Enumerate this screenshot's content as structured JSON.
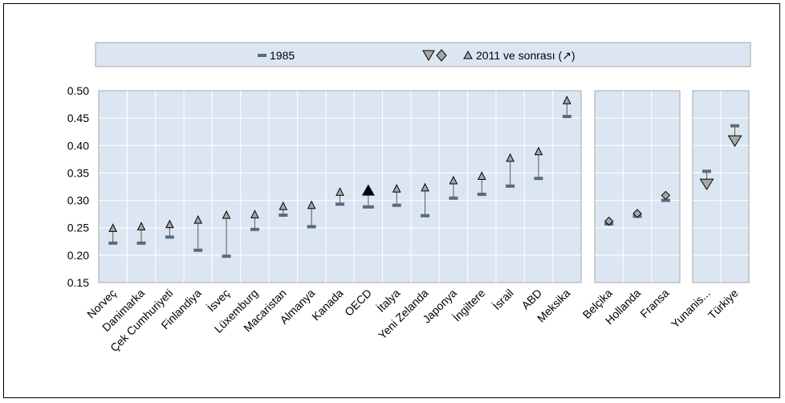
{
  "colors": {
    "panel_fill": "#dce6f2",
    "panel_border": "#a6a6a6",
    "grid": "#ffffff",
    "marker_1985": "#5a6a7e",
    "triangle_fill": "#a6a6a6",
    "stem": "#595959",
    "oecd_marker": "#000000"
  },
  "legend": {
    "label_1985": "1985",
    "label_2011": "2011 ve sonrası (↗)"
  },
  "chart_data": {
    "type": "dot-range",
    "title": "",
    "xlabel": "",
    "ylabel": "",
    "ylim": [
      0.15,
      0.5
    ],
    "yticks": [
      "0.50",
      "0.45",
      "0.40",
      "0.35",
      "0.30",
      "0.25",
      "0.20",
      "0.15"
    ],
    "grid": true,
    "legend_position": "top",
    "series": [
      {
        "name": "1985"
      },
      {
        "name": "2011 ve sonrası (↗)"
      }
    ],
    "groups": [
      {
        "marker": "up-triangle",
        "categories": [
          "Norveç",
          "Danimarka",
          "Çek Cumhuriyeti",
          "Finlandiya",
          "İsveç",
          "Lüxemburg",
          "Macaristan",
          "Almanya",
          "Kanada",
          "OECD",
          "İtalya",
          "Yeni Zelanda",
          "Japonya",
          "İngiltere",
          "İsrail",
          "ABD",
          "Meksika"
        ],
        "v1985": [
          0.222,
          0.222,
          0.233,
          0.209,
          0.198,
          0.247,
          0.273,
          0.252,
          0.293,
          0.288,
          0.291,
          0.272,
          0.304,
          0.311,
          0.326,
          0.34,
          0.453
        ],
        "v2011": [
          0.249,
          0.252,
          0.256,
          0.264,
          0.273,
          0.274,
          0.289,
          0.291,
          0.315,
          0.316,
          0.321,
          0.323,
          0.336,
          0.344,
          0.377,
          0.389,
          0.482
        ]
      },
      {
        "marker": "diamond",
        "categories": [
          "Belçika",
          "Hollanda",
          "Fransa"
        ],
        "v1985": [
          0.257,
          0.271,
          0.3
        ],
        "v2011": [
          0.262,
          0.276,
          0.309
        ]
      },
      {
        "marker": "down-triangle",
        "categories": [
          "Yunanis...",
          "Türkiye"
        ],
        "v1985": [
          0.353,
          0.436
        ],
        "v2011": [
          0.33,
          0.409
        ]
      }
    ]
  }
}
